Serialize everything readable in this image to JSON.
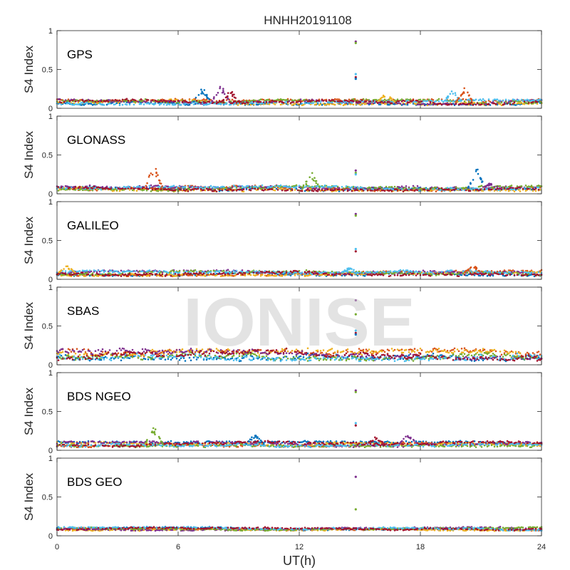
{
  "chart_data": {
    "type": "scatter",
    "title": "HNHH20191108",
    "xlabel": "UT(h)",
    "ylabel": "S4 Index",
    "xlim": [
      0,
      24
    ],
    "ylim": [
      0,
      1
    ],
    "xticks": [
      "0",
      "6",
      "12",
      "18",
      "24"
    ],
    "yticks": [
      "0",
      "0.5",
      "1"
    ],
    "grid": false,
    "watermark": "IONISE",
    "colors": [
      "#0072BD",
      "#D95319",
      "#EDB120",
      "#7E2F8E",
      "#77AC30",
      "#4DBEEE",
      "#A2142F"
    ],
    "panels": [
      {
        "name": "GPS",
        "baseline": 0.08,
        "spread": 0.03,
        "spikes": [
          {
            "x": 14.8,
            "values": [
              0.86,
              0.84,
              0.44,
              0.4,
              0.38
            ]
          }
        ],
        "bumps": [
          {
            "x": 7.2,
            "max": 0.28
          },
          {
            "x": 8.1,
            "max": 0.33
          },
          {
            "x": 8.6,
            "max": 0.24
          },
          {
            "x": 16.3,
            "max": 0.2
          },
          {
            "x": 19.6,
            "max": 0.25
          },
          {
            "x": 20.2,
            "max": 0.27
          }
        ]
      },
      {
        "name": "GLONASS",
        "baseline": 0.07,
        "spread": 0.03,
        "spikes": [
          {
            "x": 14.8,
            "values": [
              0.3,
              0.27,
              0.25
            ]
          }
        ],
        "bumps": [
          {
            "x": 4.8,
            "max": 0.4
          },
          {
            "x": 12.6,
            "max": 0.29
          },
          {
            "x": 20.8,
            "max": 0.37
          },
          {
            "x": 21.5,
            "max": 0.15
          }
        ]
      },
      {
        "name": "GALILEO",
        "baseline": 0.08,
        "spread": 0.03,
        "spikes": [
          {
            "x": 14.8,
            "values": [
              0.84,
              0.82,
              0.39,
              0.36
            ]
          }
        ],
        "bumps": [
          {
            "x": 0.5,
            "max": 0.18
          },
          {
            "x": 14.5,
            "max": 0.16
          },
          {
            "x": 20.6,
            "max": 0.2
          }
        ]
      },
      {
        "name": "SBAS",
        "baseline": 0.13,
        "spread": 0.06,
        "spikes": [
          {
            "x": 14.8,
            "values": [
              0.83,
              0.65,
              0.44,
              0.41,
              0.39
            ]
          }
        ],
        "bumps": []
      },
      {
        "name": "BDS NGEO",
        "baseline": 0.08,
        "spread": 0.03,
        "spikes": [
          {
            "x": 14.8,
            "values": [
              0.77,
              0.75,
              0.35,
              0.32
            ]
          }
        ],
        "bumps": [
          {
            "x": 4.8,
            "max": 0.31
          },
          {
            "x": 9.8,
            "max": 0.22
          },
          {
            "x": 17.4,
            "max": 0.23
          },
          {
            "x": 15.8,
            "max": 0.18
          }
        ]
      },
      {
        "name": "BDS GEO",
        "baseline": 0.09,
        "spread": 0.02,
        "spikes": [
          {
            "x": 14.8,
            "values": [
              0.76,
              0.34
            ]
          }
        ],
        "bumps": []
      }
    ]
  }
}
